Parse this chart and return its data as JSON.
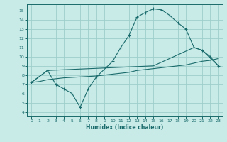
{
  "xlabel": "Humidex (Indice chaleur)",
  "xlim": [
    -0.5,
    23.5
  ],
  "ylim": [
    3.5,
    15.7
  ],
  "xticks": [
    0,
    1,
    2,
    3,
    4,
    5,
    6,
    7,
    8,
    9,
    10,
    11,
    12,
    13,
    14,
    15,
    16,
    17,
    18,
    19,
    20,
    21,
    22,
    23
  ],
  "yticks": [
    4,
    5,
    6,
    7,
    8,
    9,
    10,
    11,
    12,
    13,
    14,
    15
  ],
  "background_color": "#c8ebe8",
  "grid_color": "#9ecfcb",
  "line_color": "#1a6b6b",
  "curve1_x": [
    0,
    2,
    3,
    4,
    5,
    6,
    7,
    8,
    10,
    11,
    12,
    13,
    14,
    15,
    16,
    17,
    18,
    19,
    20,
    21,
    22,
    23
  ],
  "curve1_y": [
    7.2,
    8.5,
    7.0,
    6.5,
    6.0,
    4.5,
    6.5,
    7.8,
    9.5,
    11.0,
    12.3,
    14.3,
    14.8,
    15.2,
    15.1,
    14.5,
    13.7,
    13.0,
    11.0,
    10.7,
    10.0,
    9.0
  ],
  "curve2_x": [
    0,
    1,
    2,
    3,
    4,
    5,
    6,
    7,
    8,
    9,
    10,
    11,
    12,
    13,
    14,
    15,
    16,
    17,
    18,
    19,
    20,
    21,
    22,
    23
  ],
  "curve2_y": [
    7.2,
    7.3,
    7.5,
    7.6,
    7.7,
    7.75,
    7.8,
    7.85,
    7.9,
    8.0,
    8.1,
    8.2,
    8.3,
    8.5,
    8.6,
    8.7,
    8.8,
    8.9,
    9.0,
    9.1,
    9.3,
    9.5,
    9.6,
    9.8
  ],
  "curve3_x": [
    0,
    2,
    15,
    20,
    21,
    23
  ],
  "curve3_y": [
    7.2,
    8.5,
    9.0,
    11.0,
    10.7,
    9.0
  ]
}
